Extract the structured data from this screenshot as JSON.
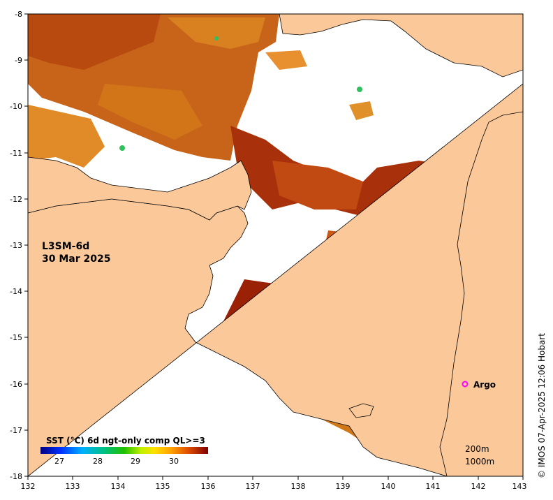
{
  "product": {
    "name": "L3SM-6d",
    "date": "30 Mar 2025"
  },
  "credit": "© IMOS 07-Apr-2025 12:06 Hobart",
  "axes": {
    "x_ticks": [
      "132",
      "133",
      "134",
      "135",
      "136",
      "137",
      "138",
      "139",
      "140",
      "141",
      "142",
      "143"
    ],
    "y_ticks": [
      "-8",
      "-9",
      "-10",
      "-11",
      "-12",
      "-13",
      "-14",
      "-15",
      "-16",
      "-17",
      "-18"
    ],
    "x_range": [
      132,
      143
    ],
    "y_range": [
      -18,
      -8
    ]
  },
  "colorbar": {
    "title": "SST (°C) 6d ngt-only comp QL>=3",
    "ticks": [
      "27",
      "28",
      "29",
      "30"
    ],
    "colors": [
      "#000080",
      "#0000ff",
      "#00a0ff",
      "#00d0a0",
      "#00c000",
      "#80e000",
      "#ffff00",
      "#ffc000",
      "#ff8000",
      "#e05000",
      "#b02000",
      "#800000"
    ]
  },
  "legend": {
    "argo_label": "Argo",
    "argo_color": "#ff00ff",
    "depth_200": "200m",
    "depth_1000": "1000m"
  },
  "markers": {
    "argo": {
      "lon": 141.7,
      "lat": -16.0
    }
  },
  "colors": {
    "land": "#fbc89a",
    "no_data": "#ffffff",
    "sst_warm": "#d2691e"
  }
}
